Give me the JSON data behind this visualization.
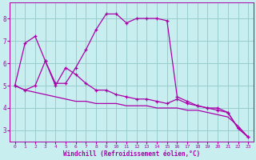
{
  "xlabel": "Windchill (Refroidissement éolien,°C)",
  "background_color": "#c8eef0",
  "grid_color": "#99cccc",
  "line_color": "#aa00aa",
  "xlim": [
    -0.5,
    23.5
  ],
  "ylim": [
    2.5,
    8.7
  ],
  "xticks": [
    0,
    1,
    2,
    3,
    4,
    5,
    6,
    7,
    8,
    9,
    10,
    11,
    12,
    13,
    14,
    15,
    16,
    17,
    18,
    19,
    20,
    21,
    22,
    23
  ],
  "yticks": [
    3,
    4,
    5,
    6,
    7,
    8
  ],
  "curve1_x": [
    0,
    1,
    2,
    3,
    4,
    5,
    6,
    7,
    8,
    9,
    10,
    11,
    12,
    13,
    14,
    15,
    16,
    17,
    18,
    19,
    20,
    21,
    22,
    23
  ],
  "curve1_y": [
    5.0,
    6.9,
    7.2,
    6.1,
    5.1,
    5.1,
    5.8,
    6.6,
    7.5,
    8.2,
    8.2,
    7.8,
    8.0,
    8.0,
    8.0,
    7.9,
    4.5,
    4.3,
    4.1,
    4.0,
    4.0,
    3.8,
    3.1,
    2.7
  ],
  "curve2_x": [
    0,
    1,
    2,
    3,
    4,
    5,
    6,
    7,
    8,
    9,
    10,
    11,
    12,
    13,
    14,
    15,
    16,
    17,
    18,
    19,
    20,
    21,
    22,
    23
  ],
  "curve2_y": [
    5.0,
    4.8,
    5.0,
    6.1,
    5.0,
    5.8,
    5.5,
    5.1,
    4.8,
    4.8,
    4.6,
    4.5,
    4.4,
    4.4,
    4.3,
    4.2,
    4.4,
    4.2,
    4.1,
    4.0,
    3.9,
    3.8,
    3.1,
    2.7
  ],
  "curve3_x": [
    0,
    1,
    2,
    3,
    4,
    5,
    6,
    7,
    8,
    9,
    10,
    11,
    12,
    13,
    14,
    15,
    16,
    17,
    18,
    19,
    20,
    21,
    22,
    23
  ],
  "curve3_y": [
    5.0,
    4.8,
    4.7,
    4.6,
    4.5,
    4.4,
    4.3,
    4.3,
    4.2,
    4.2,
    4.2,
    4.1,
    4.1,
    4.1,
    4.0,
    4.0,
    4.0,
    3.9,
    3.9,
    3.8,
    3.7,
    3.6,
    3.2,
    2.7
  ]
}
